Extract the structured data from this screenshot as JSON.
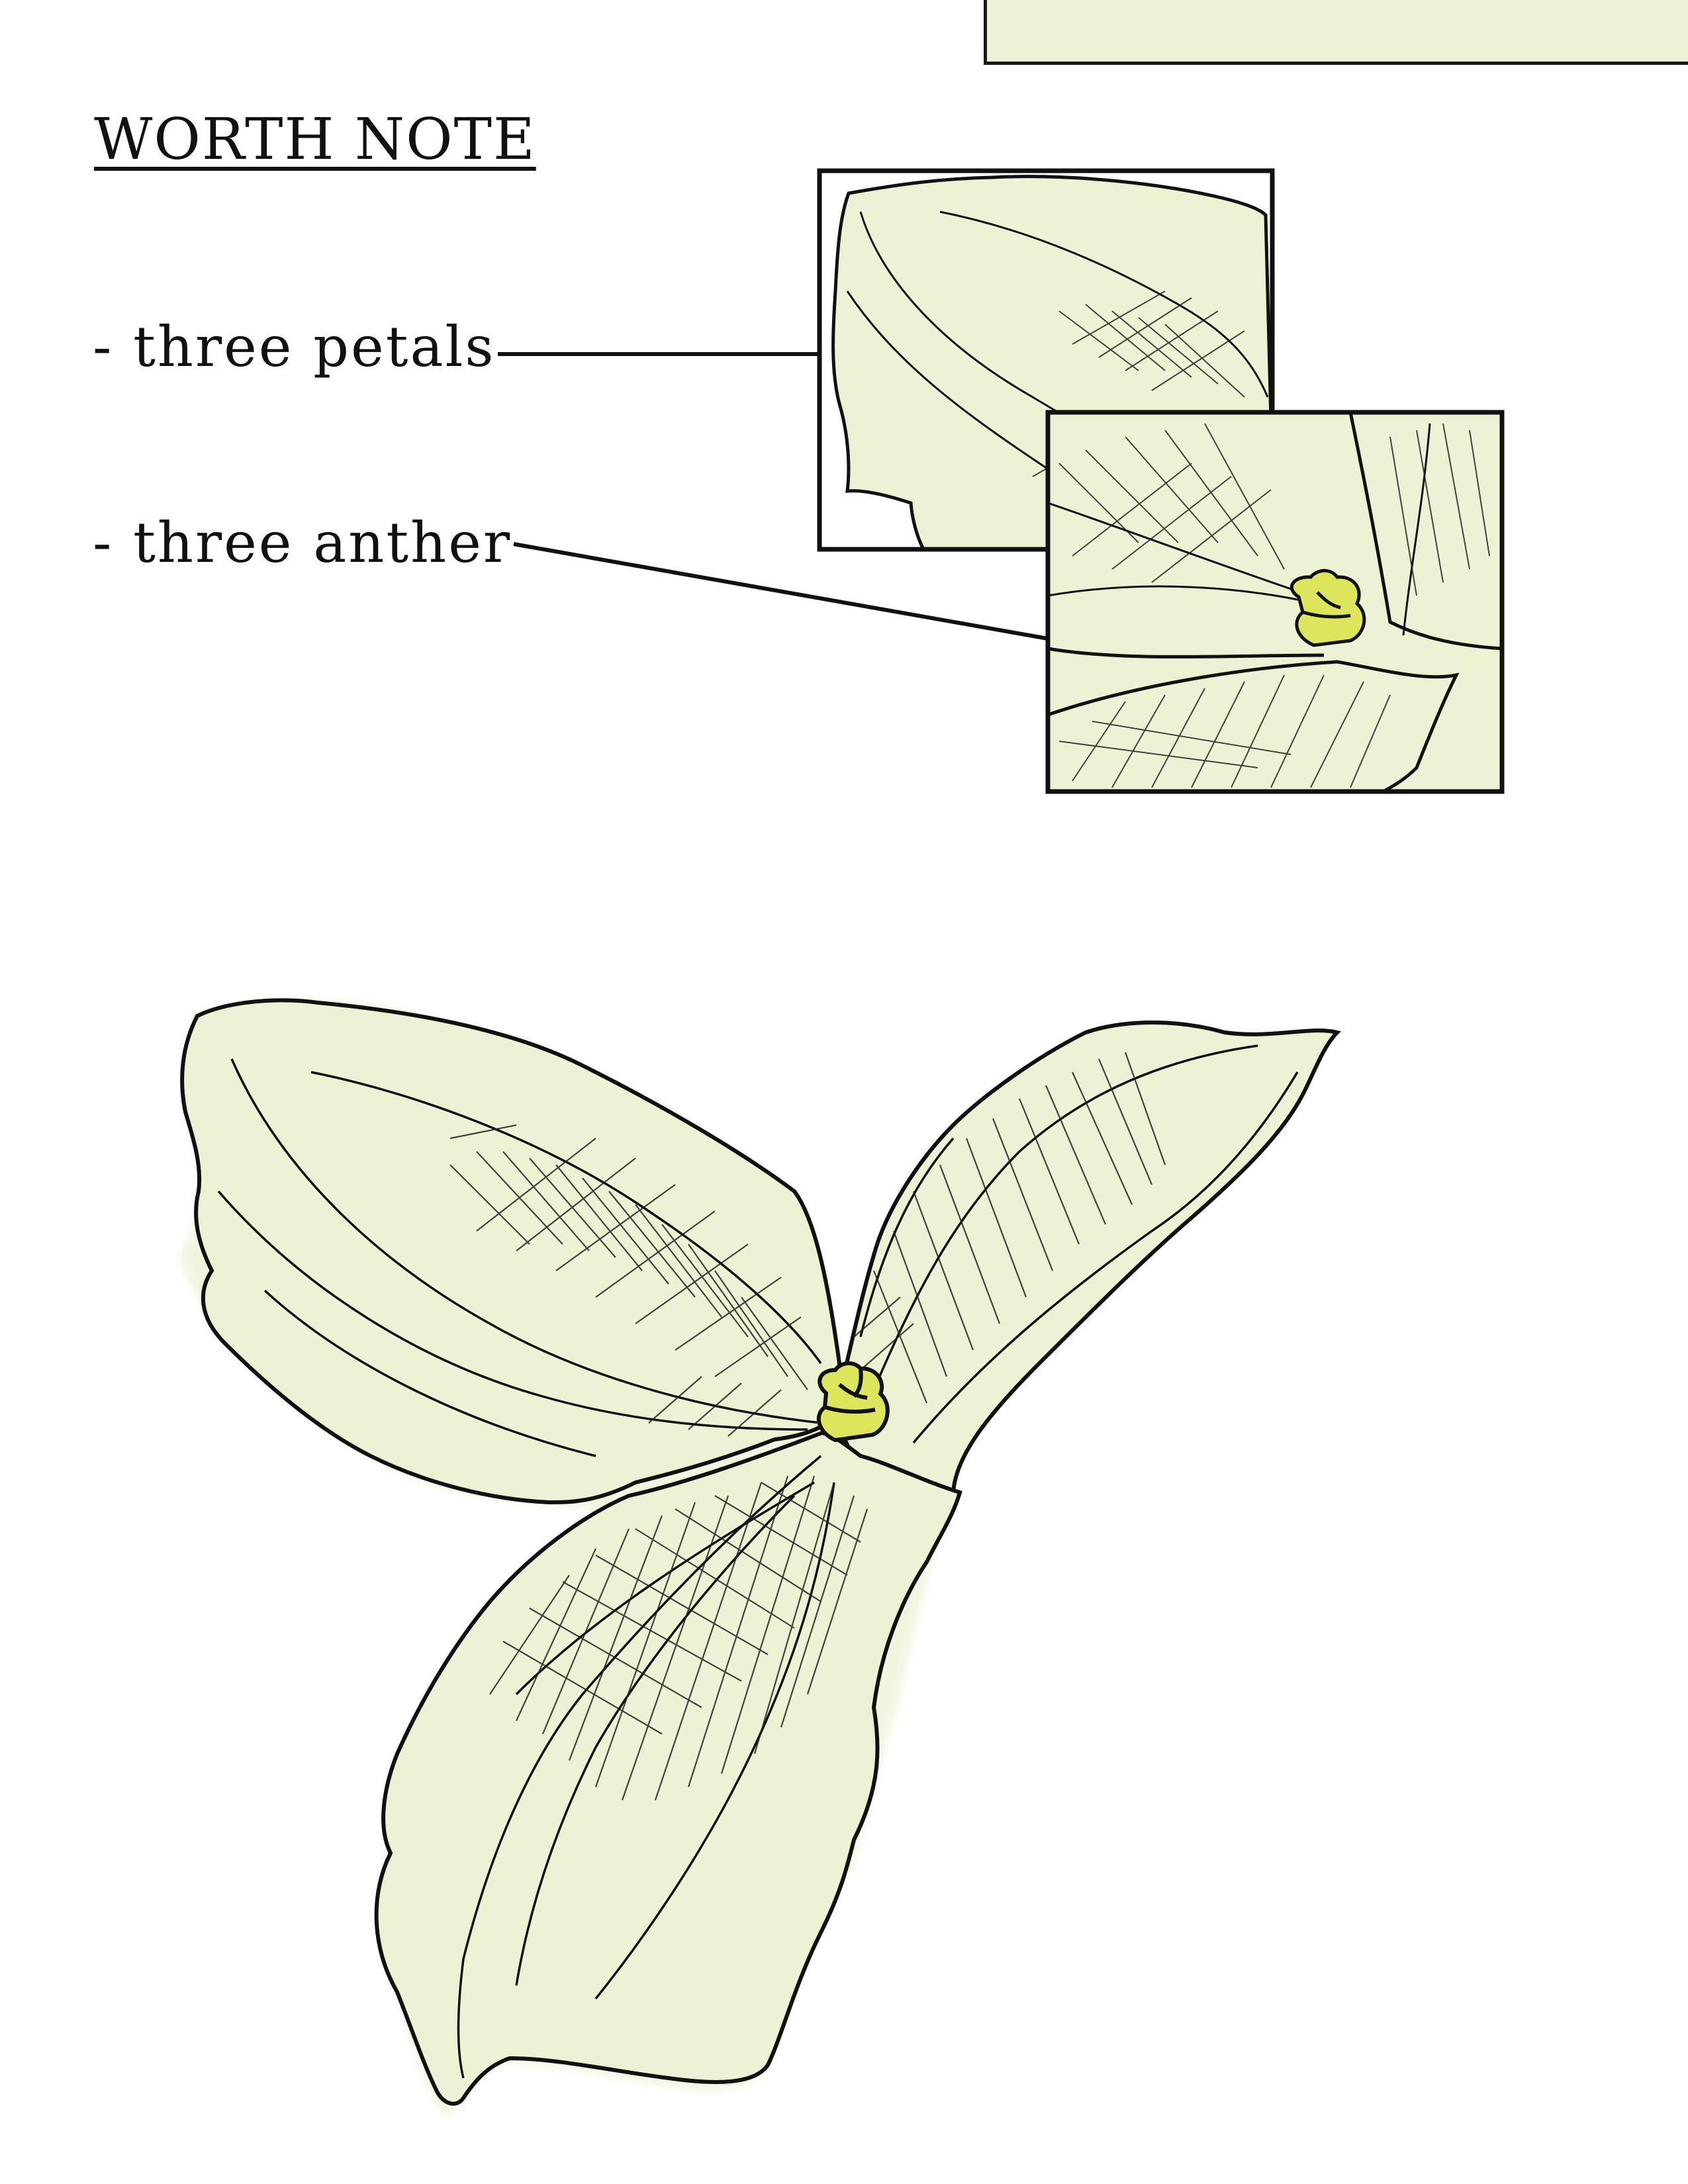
{
  "heading": "WORTH NOTE",
  "notes": [
    {
      "label": "- three petals"
    },
    {
      "label": "- three anther"
    }
  ],
  "colors": {
    "petal_fill": "#eef2d4",
    "anther_fill": "#dde65a",
    "outline": "#111111",
    "corner_box_fill": "#f1f3d9"
  }
}
